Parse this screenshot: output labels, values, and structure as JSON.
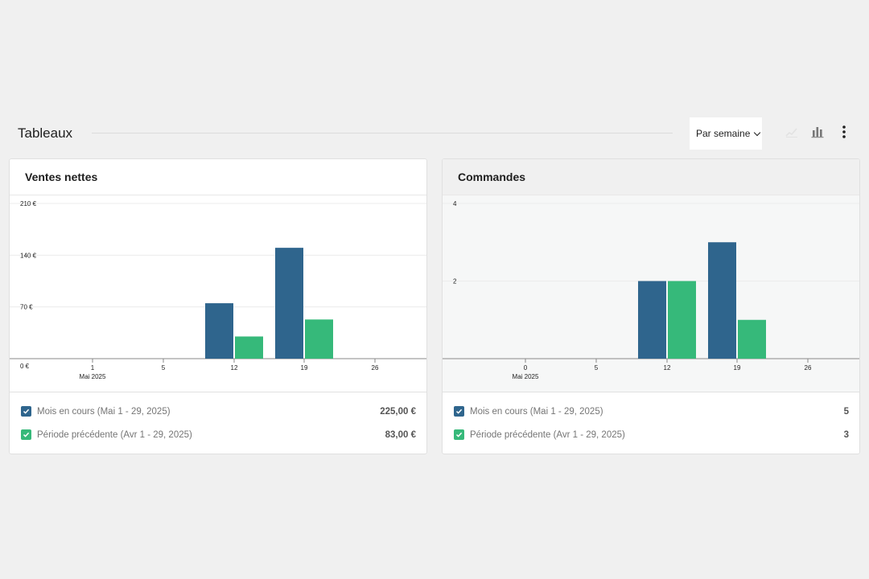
{
  "section": {
    "title": "Tableaux"
  },
  "toolbar": {
    "interval_label": "Par semaine",
    "icons": [
      "line-chart-icon",
      "bar-chart-icon",
      "more-vertical-icon"
    ]
  },
  "colors": {
    "current": "#2f658d",
    "previous": "#36b97a"
  },
  "cards": [
    {
      "title": "Ventes nettes",
      "legend": [
        {
          "label": "Mois en cours (Mai 1 - 29, 2025)",
          "total": "225,00 €"
        },
        {
          "label": "Période précédente (Avr 1 - 29, 2025)",
          "total": "83,00 €"
        }
      ]
    },
    {
      "title": "Commandes",
      "legend": [
        {
          "label": "Mois en cours (Mai 1 - 29, 2025)",
          "total": "5"
        },
        {
          "label": "Période précédente (Avr 1 - 29, 2025)",
          "total": "3"
        }
      ]
    }
  ],
  "chart_data": [
    {
      "type": "bar",
      "title": "Ventes nettes",
      "categories": [
        "1",
        "5",
        "12",
        "19",
        "26"
      ],
      "x_sublabel": "Mai 2025",
      "y_ticks": [
        "0 €",
        "70 €",
        "140 €",
        "210 €"
      ],
      "ylim": [
        0,
        210
      ],
      "grid": true,
      "series": [
        {
          "name": "Mois en cours (Mai 1 - 29, 2025)",
          "values": [
            0,
            0,
            75,
            150,
            0
          ]
        },
        {
          "name": "Période précédente (Avr 1 - 29, 2025)",
          "values": [
            0,
            0,
            30,
            53,
            0
          ]
        }
      ]
    },
    {
      "type": "bar",
      "title": "Commandes",
      "categories": [
        "0",
        "5",
        "12",
        "19",
        "26"
      ],
      "x_sublabel": "Mai 2025",
      "y_ticks": [
        "",
        "2",
        "4"
      ],
      "ylim": [
        0,
        4
      ],
      "grid": true,
      "series": [
        {
          "name": "Mois en cours (Mai 1 - 29, 2025)",
          "values": [
            0,
            0,
            2,
            3,
            0
          ]
        },
        {
          "name": "Période précédente (Avr 1 - 29, 2025)",
          "values": [
            0,
            0,
            2,
            1,
            0
          ]
        }
      ]
    }
  ]
}
